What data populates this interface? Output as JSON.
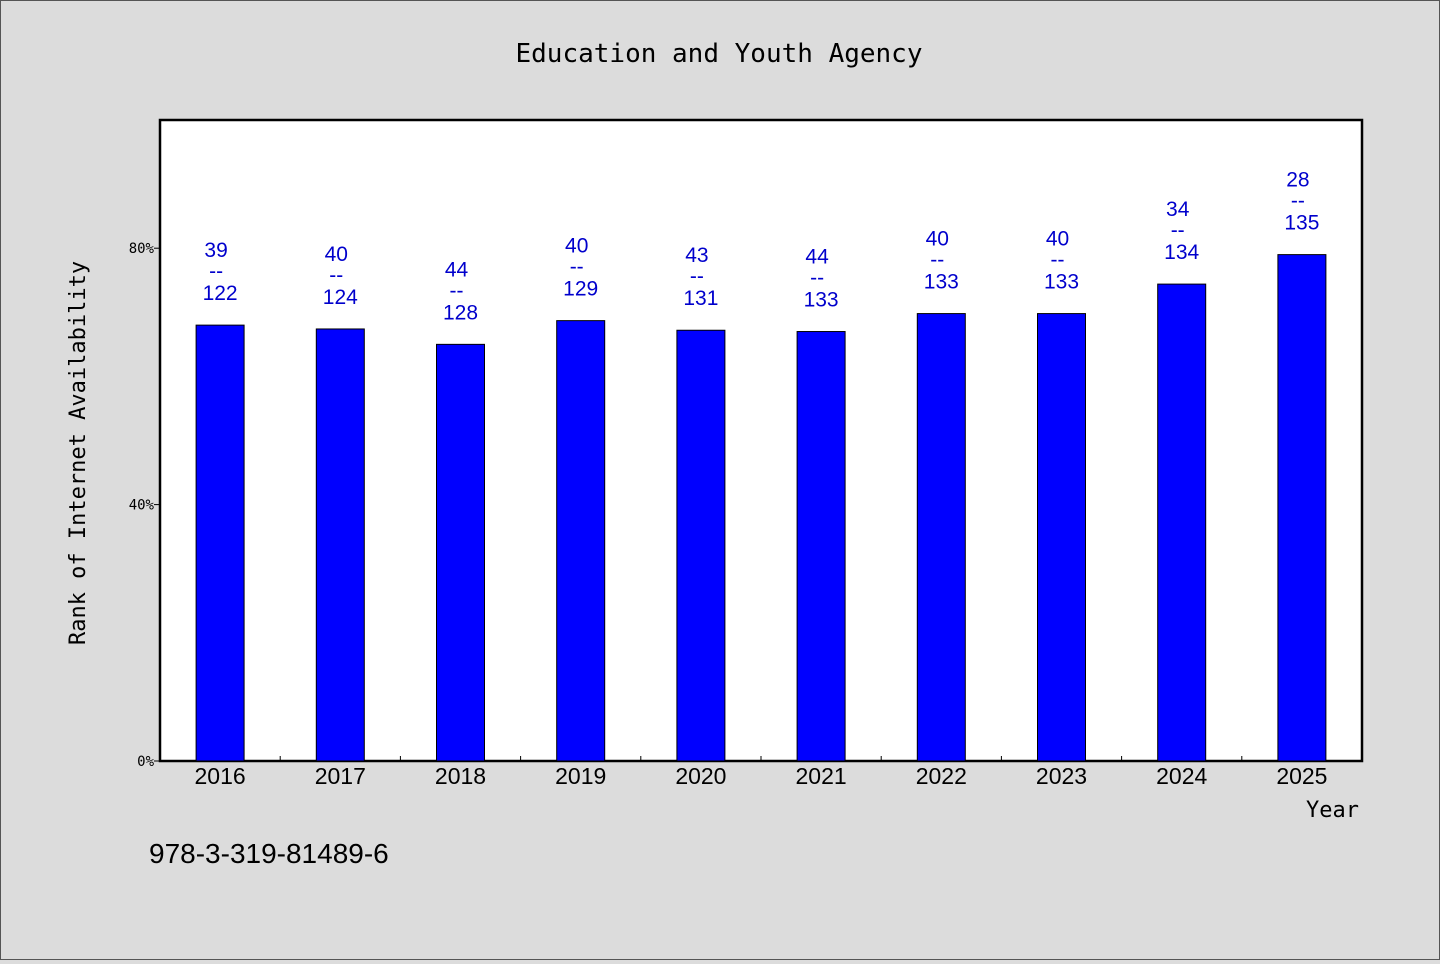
{
  "chart_data": {
    "type": "bar",
    "title": "Education and Youth Agency",
    "xlabel": "Year",
    "ylabel": "Rank of Internet Availability",
    "categories": [
      "2016",
      "2017",
      "2018",
      "2019",
      "2020",
      "2021",
      "2022",
      "2023",
      "2024",
      "2025"
    ],
    "values": [
      68,
      67.4,
      65,
      68.7,
      67.2,
      67,
      69.8,
      69.8,
      74.4,
      79
    ],
    "ylim": [
      0,
      100
    ],
    "yticks": [
      {
        "value": 0,
        "label": "0%"
      },
      {
        "value": 40,
        "label": "40%"
      },
      {
        "value": 80,
        "label": "80%"
      }
    ],
    "data_labels": [
      {
        "top": "39",
        "sep": "--",
        "bottom": "122"
      },
      {
        "top": "40",
        "sep": "--",
        "bottom": "124"
      },
      {
        "top": "44",
        "sep": "--",
        "bottom": "128"
      },
      {
        "top": "40",
        "sep": "--",
        "bottom": "129"
      },
      {
        "top": "43",
        "sep": "--",
        "bottom": "131"
      },
      {
        "top": "44",
        "sep": "--",
        "bottom": "133"
      },
      {
        "top": "40",
        "sep": "--",
        "bottom": "133"
      },
      {
        "top": "40",
        "sep": "--",
        "bottom": "133"
      },
      {
        "top": "34",
        "sep": "--",
        "bottom": "134"
      },
      {
        "top": "28",
        "sep": "--",
        "bottom": "135"
      }
    ],
    "bar_color": "#0000ff",
    "label_color": "#0000cc",
    "plot_background": "#ffffff",
    "page_background": "#dcdcdc",
    "grid": false,
    "legend": "none"
  },
  "footnote": "978-3-319-81489-6"
}
